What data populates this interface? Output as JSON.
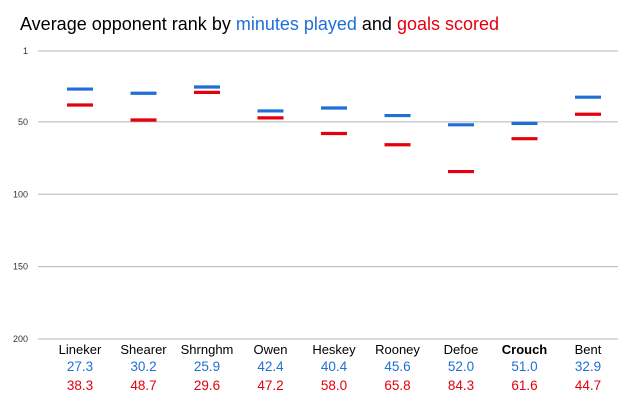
{
  "chart_data": {
    "type": "scatter",
    "title": {
      "prefix": "Average opponent rank by ",
      "series1_text": "minutes played",
      "conjunction": " and ",
      "series2_text": "goals scored"
    },
    "y_axis": {
      "inverted": true,
      "ylim": [
        1,
        200
      ],
      "ticks": [
        1,
        50,
        100,
        150,
        200
      ],
      "tick_labels": [
        "1",
        "50",
        "100",
        "150",
        "200"
      ],
      "grid": true
    },
    "categories": [
      "Lineker",
      "Shearer",
      "Shrnghm",
      "Owen",
      "Heskey",
      "Rooney",
      "Defoe",
      "Crouch",
      "Bent"
    ],
    "highlighted_category": "Crouch",
    "series": [
      {
        "key": "minutes_played",
        "color": "#1f6fd6",
        "values": [
          27.3,
          30.2,
          25.9,
          42.4,
          40.4,
          45.6,
          52.0,
          51.0,
          32.9
        ],
        "labels": [
          "27.3",
          "30.2",
          "25.9",
          "42.4",
          "40.4",
          "45.6",
          "52.0",
          "51.0",
          "32.9"
        ]
      },
      {
        "key": "goals_scored",
        "color": "#e3000f",
        "values": [
          38.3,
          48.7,
          29.6,
          47.2,
          58.0,
          65.8,
          84.3,
          61.6,
          44.7
        ],
        "labels": [
          "38.3",
          "48.7",
          "29.6",
          "47.2",
          "58.0",
          "65.8",
          "84.3",
          "61.6",
          "44.7"
        ]
      }
    ]
  }
}
